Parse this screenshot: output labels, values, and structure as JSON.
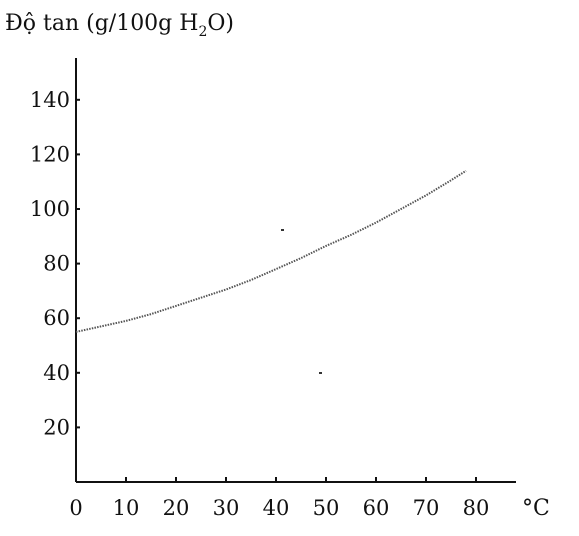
{
  "chart_data": {
    "type": "line",
    "ylabel": {
      "pre": "Độ tan (g/100g H",
      "sub": "2",
      "post": "O)"
    },
    "xlabel": "°C",
    "xlim": [
      0,
      85
    ],
    "ylim": [
      0,
      150
    ],
    "x_ticks": [
      0,
      10,
      20,
      30,
      40,
      50,
      60,
      70,
      80
    ],
    "y_ticks": [
      20,
      40,
      60,
      80,
      100,
      120,
      140
    ],
    "grid": false,
    "legend": "none",
    "series": [
      {
        "x": [
          0,
          5,
          10,
          15,
          20,
          25,
          30,
          35,
          40,
          45,
          50,
          55,
          60,
          65,
          70,
          75,
          78
        ],
        "y": [
          55,
          57,
          59,
          61.5,
          64.5,
          67.5,
          70.5,
          74,
          78,
          82,
          86.5,
          90.5,
          95,
          100,
          105,
          110.5,
          114
        ]
      }
    ]
  }
}
